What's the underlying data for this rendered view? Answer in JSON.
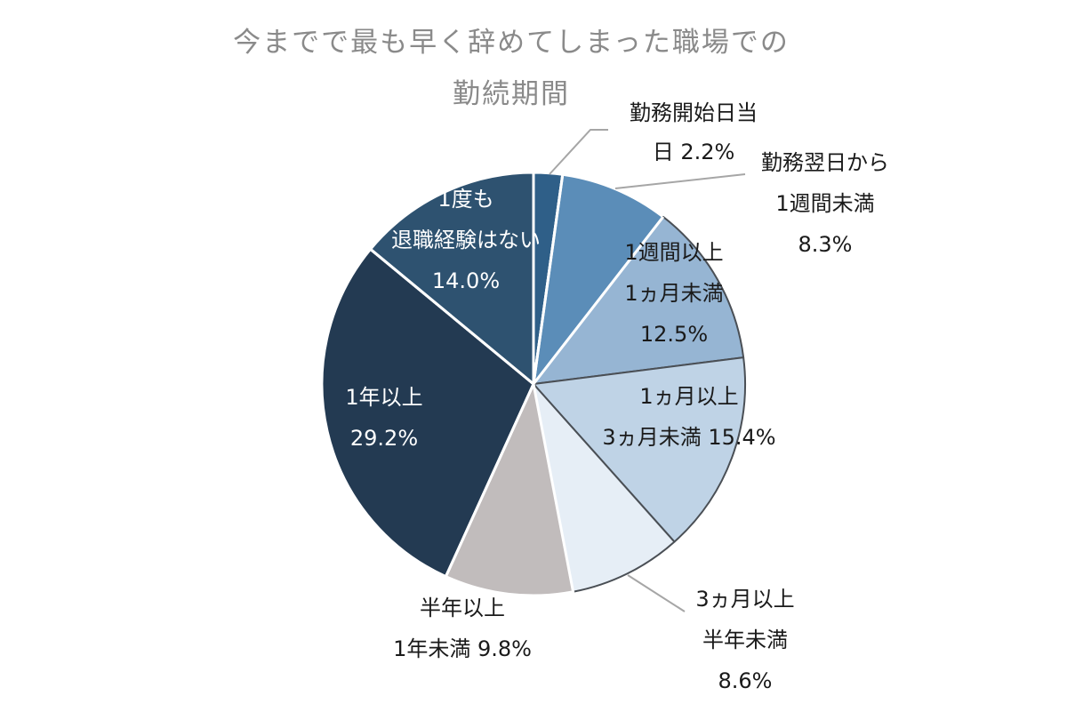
{
  "chart_data": {
    "type": "pie",
    "title": [
      "今までで最も早く辞めてしまった職場での",
      "勤続期間"
    ],
    "start_angle_deg": 0,
    "direction": "clockwise",
    "slices": [
      {
        "label": [
          "勤務開始日当",
          "日 2.2%"
        ],
        "value": 2.2,
        "color": "#2f5f88",
        "label_color": "#1a1a1a"
      },
      {
        "label": [
          "勤務翌日から",
          "1週間未満",
          "8.3%"
        ],
        "value": 8.3,
        "color": "#5b8db8",
        "label_color": "#1a1a1a"
      },
      {
        "label": [
          "1週間以上",
          "1ヵ月未満",
          "12.5%"
        ],
        "value": 12.5,
        "color": "#96b5d3",
        "label_color": "#1a1a1a"
      },
      {
        "label": [
          "1ヵ月以上",
          "3ヵ月未満 15.4%"
        ],
        "value": 15.4,
        "color": "#bfd3e6",
        "label_color": "#1a1a1a"
      },
      {
        "label": [
          "3ヵ月以上",
          "半年未満",
          "8.6%"
        ],
        "value": 8.6,
        "color": "#e6eef6",
        "label_color": "#1a1a1a"
      },
      {
        "label": [
          "半年以上",
          "1年未満 9.8%"
        ],
        "value": 9.8,
        "color": "#c1bcbc",
        "label_color": "#1a1a1a"
      },
      {
        "label": [
          "1年以上",
          "29.2%"
        ],
        "value": 29.2,
        "color": "#233a52",
        "label_color": "#ffffff"
      },
      {
        "label": [
          "1度も",
          "退職経験はない",
          "14.0%"
        ],
        "value": 14.0,
        "color": "#2e5270",
        "label_color": "#ffffff"
      }
    ]
  }
}
